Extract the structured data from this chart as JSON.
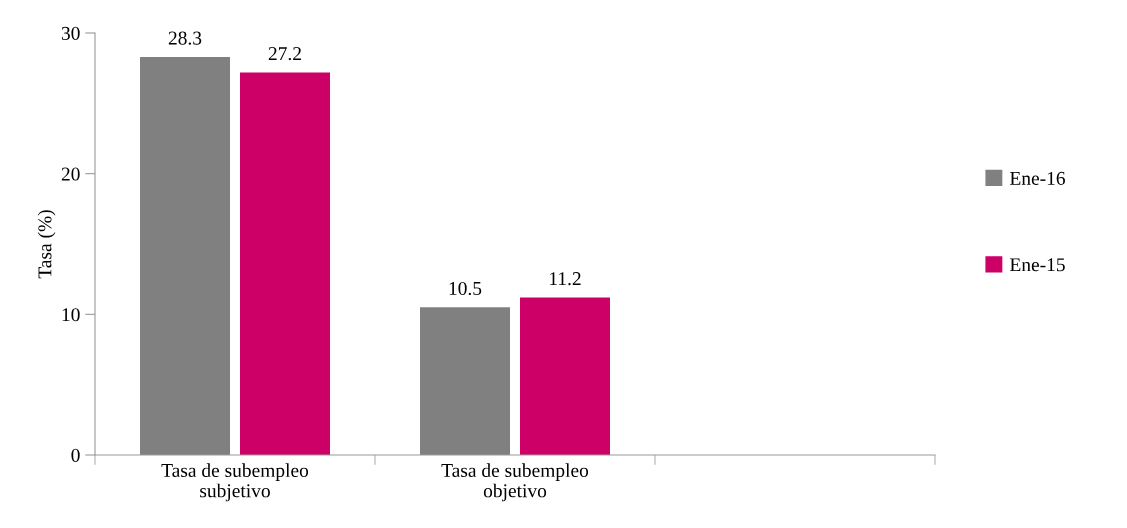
{
  "chart_data": {
    "type": "bar",
    "ylabel": "Tasa (%)",
    "categories": [
      "Tasa de subempleo\nsubjetivo",
      "Tasa de subempleo\nobjetivo",
      null
    ],
    "series": [
      {
        "name": "Ene-16",
        "color": "#808080",
        "values": [
          28.3,
          10.5,
          null
        ]
      },
      {
        "name": "Ene-15",
        "color": "#cc0066",
        "values": [
          27.2,
          11.2,
          null
        ]
      }
    ],
    "ylim": [
      0,
      30
    ],
    "yticks": [
      0,
      10,
      20,
      30
    ],
    "data_labels": true,
    "grid": false,
    "legend": "right"
  }
}
